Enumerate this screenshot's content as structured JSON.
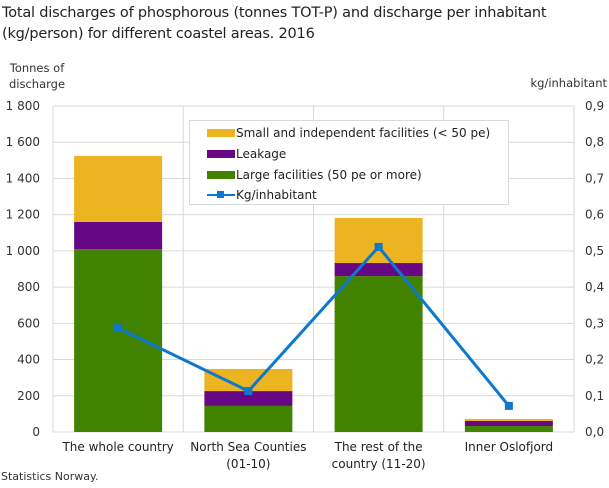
{
  "title": "Total discharges of phosphorous (tonnes TOT-P) and discharge per inhabitant (kg/person) for different coastel areas. 2016",
  "axis": {
    "left_label_line1": "Tonnes of",
    "left_label_line2": "discharge",
    "right_label": "kg/inhabitant",
    "left_ticks": [
      "0",
      "200",
      "400",
      "600",
      "800",
      "1 000",
      "1 200",
      "1 400",
      "1 600",
      "1 800"
    ],
    "right_ticks": [
      "0,0",
      "0,1",
      "0,2",
      "0,3",
      "0,4",
      "0,5",
      "0,6",
      "0,7",
      "0,8",
      "0,9"
    ]
  },
  "legend": {
    "items": [
      {
        "label": "Small and independent facilities (< 50 pe)",
        "color": "#EBB420",
        "type": "bar"
      },
      {
        "label": "Leakage",
        "color": "#680784",
        "type": "bar"
      },
      {
        "label": "Large facilities (50 pe or more)",
        "color": "#418300",
        "type": "bar"
      },
      {
        "label": "Kg/inhabitant",
        "color": "#0E77CE",
        "type": "line"
      }
    ]
  },
  "source": "Statistics Norway.",
  "chart_data": {
    "type": "bar",
    "stacked": true,
    "title": "Total discharges of phosphorous (tonnes TOT-P) and discharge per inhabitant (kg/person) for different coastel areas. 2016",
    "categories": [
      "The whole country",
      "North Sea Counties (01-10)",
      "The rest of the country (11-20)",
      "Inner Oslofjord"
    ],
    "category_lines": [
      [
        "The whole country"
      ],
      [
        "North Sea Counties",
        "(01-10)"
      ],
      [
        "The rest of the",
        "country (11-20)"
      ],
      [
        "Inner Oslofjord"
      ]
    ],
    "series": [
      {
        "name": "Large facilities (50 pe or more)",
        "type": "bar",
        "axis": "left",
        "color": "#418300",
        "values": [
          1010,
          144,
          861,
          33
        ]
      },
      {
        "name": "Leakage",
        "type": "bar",
        "axis": "left",
        "color": "#680784",
        "values": [
          150,
          82,
          72,
          28
        ]
      },
      {
        "name": "Small and independent facilities (< 50 pe)",
        "type": "bar",
        "axis": "left",
        "color": "#EBB420",
        "values": [
          364,
          122,
          249,
          11
        ]
      },
      {
        "name": "Kg/inhabitant",
        "type": "line",
        "axis": "right",
        "color": "#0E77CE",
        "values": [
          0.287,
          0.113,
          0.511,
          0.072
        ]
      }
    ],
    "xlabel": "",
    "ylabel": "Tonnes of discharge",
    "ylabel_right": "kg/inhabitant",
    "ylim": [
      0,
      1800
    ],
    "ylim_right": [
      0,
      0.9
    ],
    "grid": true,
    "legend_position": "top-inside"
  }
}
